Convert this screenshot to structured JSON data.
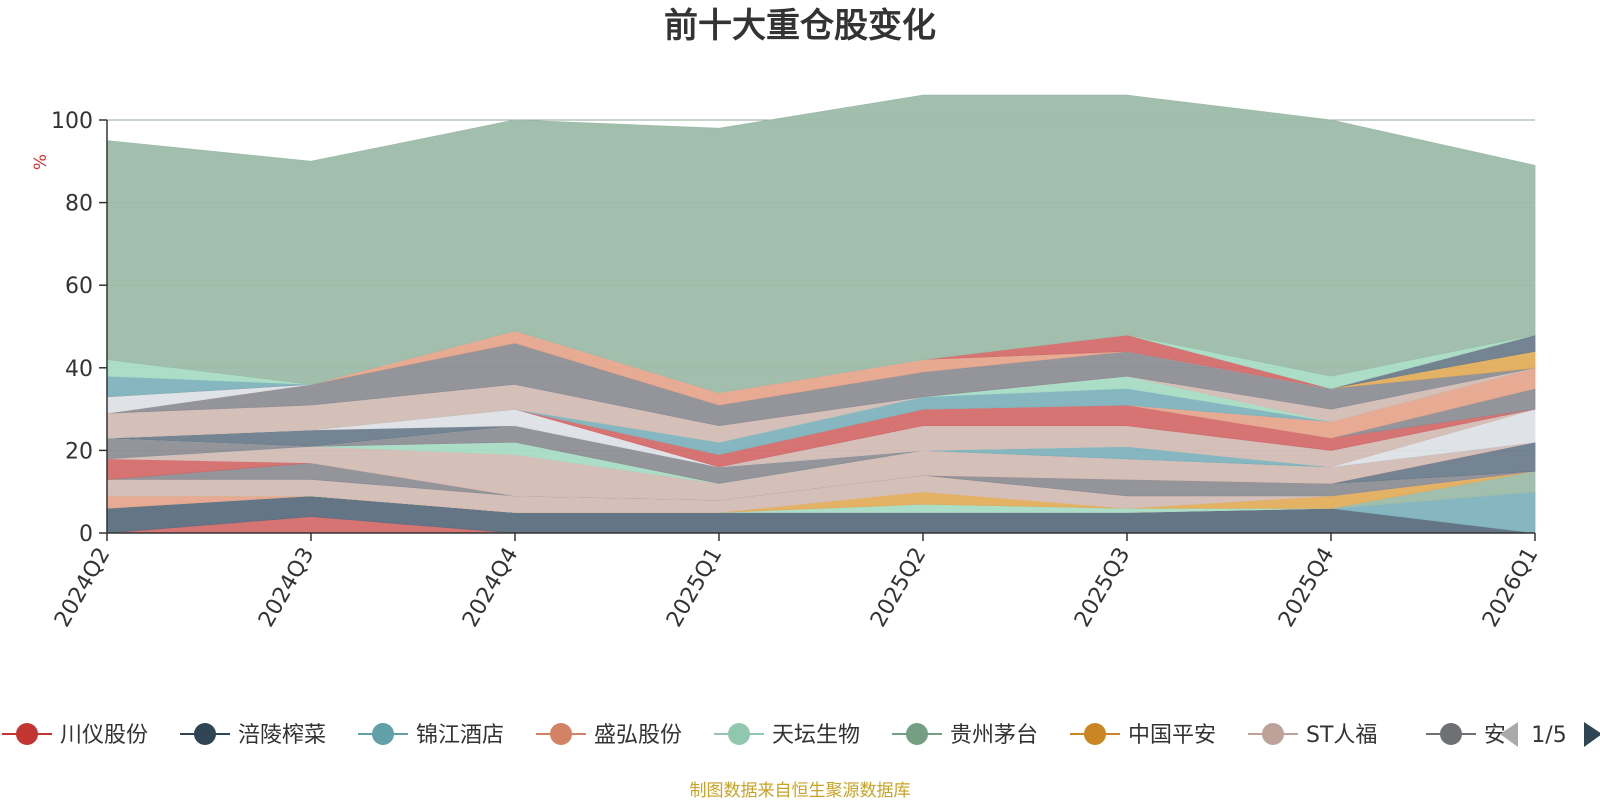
{
  "chart_data": {
    "type": "area",
    "stacked": true,
    "title": "前十大重仓股变化",
    "ylabel": "%",
    "ylim": [
      0,
      100
    ],
    "yticks": [
      "0",
      "20",
      "40",
      "60",
      "80",
      "100"
    ],
    "categories": [
      "2024Q2",
      "2024Q3",
      "2024Q4",
      "2025Q1",
      "2025Q2",
      "2025Q3",
      "2025Q4",
      "2026Q1"
    ],
    "grid": true,
    "legend_position": "bottom",
    "series": [
      {
        "name": "川仪股份",
        "color": "#d46b6b",
        "values": [
          0,
          4,
          0,
          0,
          0,
          0,
          0,
          0
        ]
      },
      {
        "name": "涪陵榨菜",
        "color": "#5c6f80",
        "values": [
          6,
          5,
          5,
          5,
          5,
          5,
          6,
          0
        ]
      },
      {
        "name": "锦江酒店",
        "color": "#7fb3bd",
        "values": [
          0,
          0,
          0,
          0,
          0,
          0,
          0,
          10
        ]
      },
      {
        "name": "盛弘股份",
        "color": "#e6a68e",
        "values": [
          3,
          0,
          0,
          0,
          0,
          0,
          0,
          0
        ]
      },
      {
        "name": "天坛生物",
        "color": "#a8dcc4",
        "values": [
          0,
          0,
          0,
          0,
          2,
          1,
          0,
          0
        ]
      },
      {
        "name": "贵州茅台",
        "color": "#9dbba8",
        "values": [
          0,
          0,
          0,
          0,
          0,
          0,
          0,
          5
        ]
      },
      {
        "name": "中国平安",
        "color": "#e3ae5c",
        "values": [
          0,
          0,
          0,
          0,
          3,
          0,
          3,
          0
        ]
      },
      {
        "name": "ST人福",
        "color": "#d3bdb5",
        "values": [
          4,
          4,
          4,
          3,
          4,
          3,
          0,
          0
        ]
      },
      {
        "name": "安",
        "color": "#8e8e96",
        "values": [
          0,
          4,
          0,
          0,
          0,
          4,
          3,
          0
        ]
      },
      {
        "name": "",
        "color": "#6d7d8c",
        "values": [
          0,
          0,
          0,
          0,
          0,
          0,
          0,
          7
        ]
      },
      {
        "name": "",
        "color": "#d46b6b",
        "values": [
          5,
          0,
          0,
          0,
          0,
          0,
          0,
          0
        ]
      },
      {
        "name": "",
        "color": "#d3bdb5",
        "values": [
          0,
          4,
          10,
          4,
          6,
          5,
          4,
          0
        ]
      },
      {
        "name": "",
        "color": "#a8dcc4",
        "values": [
          0,
          0,
          3,
          0,
          0,
          0,
          0,
          0
        ]
      },
      {
        "name": "",
        "color": "#8e8e96",
        "values": [
          5,
          0,
          4,
          4,
          0,
          0,
          0,
          0
        ]
      },
      {
        "name": "",
        "color": "#7fb3bd",
        "values": [
          0,
          0,
          0,
          0,
          0,
          3,
          0,
          0
        ]
      },
      {
        "name": "",
        "color": "#dde0e6",
        "values": [
          0,
          0,
          0,
          0,
          0,
          0,
          0,
          8
        ]
      },
      {
        "name": "",
        "color": "#d3bdb5",
        "values": [
          0,
          0,
          0,
          0,
          6,
          5,
          4,
          0
        ]
      },
      {
        "name": "",
        "color": "#6d7d8c",
        "values": [
          0,
          4,
          0,
          0,
          0,
          0,
          0,
          0
        ]
      },
      {
        "name": "",
        "color": "#dde0e6",
        "values": [
          0,
          0,
          4,
          0,
          0,
          0,
          0,
          0
        ]
      },
      {
        "name": "",
        "color": "#d46b6b",
        "values": [
          0,
          0,
          0,
          3,
          4,
          5,
          3,
          0
        ]
      },
      {
        "name": "",
        "color": "#8e8e96",
        "values": [
          0,
          0,
          0,
          0,
          0,
          0,
          0,
          5
        ]
      },
      {
        "name": "",
        "color": "#e6a68e",
        "values": [
          0,
          0,
          0,
          0,
          0,
          0,
          4,
          5
        ]
      },
      {
        "name": "",
        "color": "#7fb3bd",
        "values": [
          0,
          0,
          0,
          3,
          3,
          4,
          0,
          0
        ]
      },
      {
        "name": "",
        "color": "#a8dcc4",
        "values": [
          0,
          0,
          0,
          0,
          0,
          3,
          0,
          0
        ]
      },
      {
        "name": "",
        "color": "#d3bdb5",
        "values": [
          6,
          6,
          6,
          4,
          0,
          0,
          3,
          0
        ]
      },
      {
        "name": "",
        "color": "#8e8e96",
        "values": [
          0,
          5,
          10,
          5,
          6,
          6,
          5,
          0
        ]
      },
      {
        "name": "",
        "color": "#e3ae5c",
        "values": [
          0,
          0,
          0,
          0,
          0,
          0,
          0,
          4
        ]
      },
      {
        "name": "",
        "color": "#6d7d8c",
        "values": [
          0,
          0,
          0,
          0,
          0,
          0,
          0,
          4
        ]
      },
      {
        "name": "",
        "color": "#e6a68e",
        "values": [
          0,
          0,
          3,
          3,
          3,
          0,
          0,
          0
        ]
      },
      {
        "name": "",
        "color": "#dde0e6",
        "values": [
          4,
          0,
          0,
          0,
          0,
          0,
          0,
          0
        ]
      },
      {
        "name": "",
        "color": "#d46b6b",
        "values": [
          0,
          0,
          0,
          0,
          0,
          4,
          0,
          0
        ]
      },
      {
        "name": "",
        "color": "#7fb3bd",
        "values": [
          5,
          0,
          0,
          0,
          0,
          0,
          0,
          0
        ]
      },
      {
        "name": "",
        "color": "#a8dcc4",
        "values": [
          4,
          0,
          0,
          0,
          0,
          0,
          3,
          0
        ]
      },
      {
        "name": "",
        "color": "#9dbba8",
        "values": [
          53,
          54,
          51,
          64,
          64,
          58,
          62,
          41
        ]
      }
    ]
  },
  "legend": {
    "items": [
      {
        "name": "川仪股份",
        "color": "#c23531"
      },
      {
        "name": "涪陵榨菜",
        "color": "#2f4554"
      },
      {
        "name": "锦江酒店",
        "color": "#61a0a8"
      },
      {
        "name": "盛弘股份",
        "color": "#d48265"
      },
      {
        "name": "天坛生物",
        "color": "#91c7ae"
      },
      {
        "name": "贵州茅台",
        "color": "#749f83"
      },
      {
        "name": "中国平安",
        "color": "#ca8622"
      },
      {
        "name": "ST人福",
        "color": "#bda29a"
      },
      {
        "name": "安",
        "color": "#6e7074"
      }
    ],
    "page": "1/5",
    "prev_color": "#aaaaaa",
    "next_color": "#2f4554"
  },
  "source": "制图数据来自恒生聚源数据库"
}
